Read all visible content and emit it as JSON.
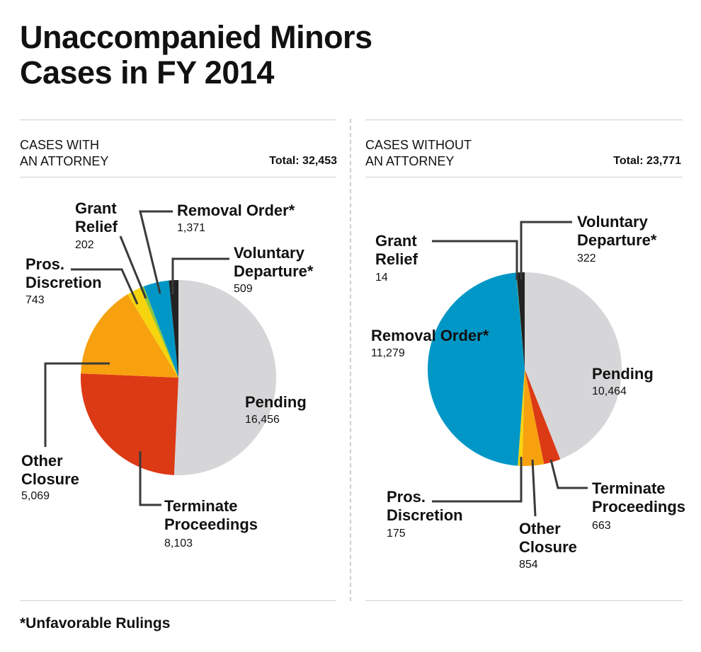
{
  "title_line1": "Unaccompanied Minors",
  "title_line2": "Cases in FY 2014",
  "footnote": "*Unfavorable Rulings",
  "chart_data": [
    {
      "type": "pie",
      "title_line1": "CASES WITH",
      "title_line2": "AN ATTORNEY",
      "total_label": "Total: 32,453",
      "slices": [
        {
          "name": "Pending",
          "value": 16456,
          "value_label": "16,456",
          "color": "#d6d6d9"
        },
        {
          "name": "Terminate Proceedings",
          "value": 8103,
          "value_label": "8,103",
          "color": "#dc3915"
        },
        {
          "name": "Other Closure",
          "value": 5069,
          "value_label": "5,069",
          "color": "#f7a10f"
        },
        {
          "name": "Pros. Discretion",
          "value": 743,
          "value_label": "743",
          "color": "#f6d40e"
        },
        {
          "name": "Grant Relief",
          "value": 202,
          "value_label": "202",
          "color": "#8cc63e"
        },
        {
          "name": "Removal Order*",
          "value": 1371,
          "value_label": "1,371",
          "color": "#0097c6"
        },
        {
          "name": "Voluntary Departure*",
          "value": 509,
          "value_label": "509",
          "color": "#222222"
        }
      ]
    },
    {
      "type": "pie",
      "title_line1": "CASES WITHOUT",
      "title_line2": "AN ATTORNEY",
      "total_label": "Total: 23,771",
      "slices": [
        {
          "name": "Pending",
          "value": 10464,
          "value_label": "10,464",
          "color": "#d6d6d9"
        },
        {
          "name": "Terminate Proceedings",
          "value": 663,
          "value_label": "663",
          "color": "#dc3915"
        },
        {
          "name": "Other Closure",
          "value": 854,
          "value_label": "854",
          "color": "#f7a10f"
        },
        {
          "name": "Pros. Discretion",
          "value": 175,
          "value_label": "175",
          "color": "#f6d40e"
        },
        {
          "name": "Removal Order*",
          "value": 11279,
          "value_label": "11,279",
          "color": "#0097c6"
        },
        {
          "name": "Grant Relief",
          "value": 14,
          "value_label": "14",
          "color": "#8cc63e"
        },
        {
          "name": "Voluntary Departure*",
          "value": 322,
          "value_label": "322",
          "color": "#222222"
        }
      ]
    }
  ]
}
